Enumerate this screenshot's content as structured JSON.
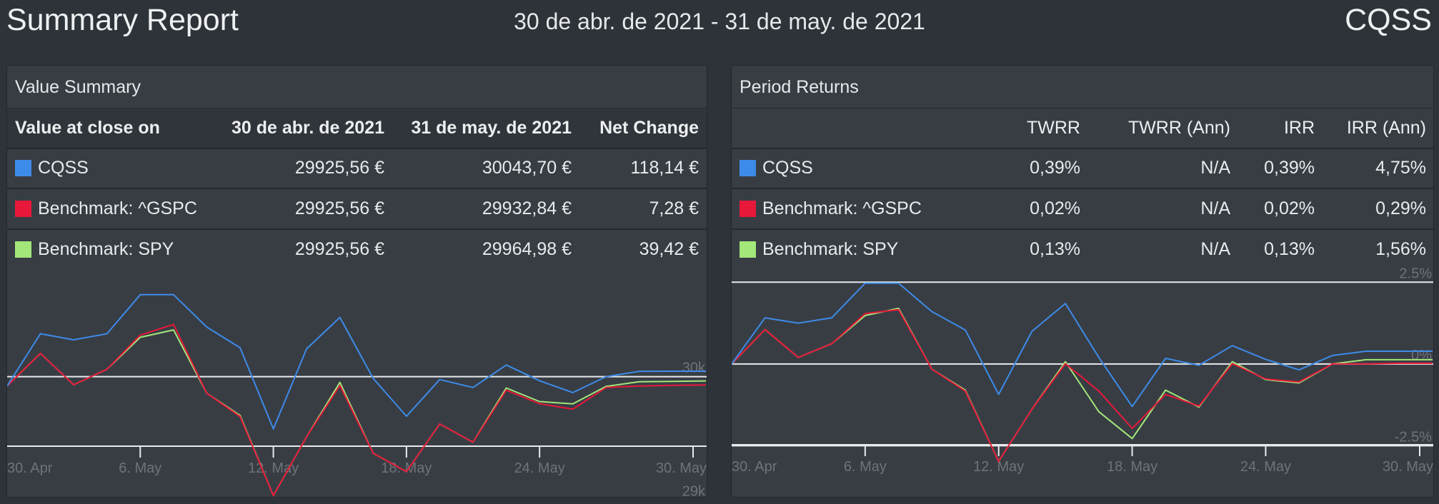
{
  "header": {
    "title": "Summary Report",
    "date_range": "30 de abr. de 2021 - 31 de may. de 2021",
    "ticker": "CQSS"
  },
  "colors": {
    "background": "#2e3339",
    "panel": "#383d44",
    "series_cqss": "#3d8be8",
    "series_gspc": "#e8183a",
    "series_spy": "#a3e67a"
  },
  "value_summary": {
    "title": "Value Summary",
    "columns": [
      "Value at close on",
      "30 de abr. de 2021",
      "31 de may. de 2021",
      "Net Change"
    ],
    "rows": [
      {
        "name": "CQSS",
        "start": "29925,56 €",
        "end": "30043,70 €",
        "change": "118,14 €"
      },
      {
        "name": "Benchmark: ^GSPC",
        "start": "29925,56 €",
        "end": "29932,84 €",
        "change": "7,28 €"
      },
      {
        "name": "Benchmark: SPY",
        "start": "29925,56 €",
        "end": "29964,98 €",
        "change": "39,42 €"
      }
    ]
  },
  "period_returns": {
    "title": "Period Returns",
    "columns": [
      "",
      "TWRR",
      "TWRR (Ann)",
      "IRR",
      "IRR (Ann)"
    ],
    "rows": [
      {
        "name": "CQSS",
        "twrr": "0,39%",
        "twrr_ann": "N/A",
        "irr": "0,39%",
        "irr_ann": "4,75%"
      },
      {
        "name": "Benchmark: ^GSPC",
        "twrr": "0,02%",
        "twrr_ann": "N/A",
        "irr": "0,02%",
        "irr_ann": "0,29%"
      },
      {
        "name": "Benchmark: SPY",
        "twrr": "0,13%",
        "twrr_ann": "N/A",
        "irr": "0,13%",
        "irr_ann": "1,56%"
      }
    ]
  },
  "chart_data": [
    {
      "type": "line",
      "x": [
        "30. Apr",
        "3. May",
        "4. May",
        "5. May",
        "6. May",
        "7. May",
        "10. May",
        "11. May",
        "12. May",
        "13. May",
        "14. May",
        "17. May",
        "18. May",
        "19. May",
        "20. May",
        "21. May",
        "24. May",
        "25. May",
        "26. May",
        "27. May",
        "28. May",
        "31. May"
      ],
      "x_ticks": [
        "30. Apr",
        "6. May",
        "12. May",
        "18. May",
        "24. May",
        "30. May"
      ],
      "y_ticks": [
        "29k",
        "30k"
      ],
      "ylim": [
        28900,
        30760
      ],
      "y_gridlines": [
        29000,
        30000
      ],
      "series": [
        {
          "name": "CQSS",
          "color": "#3d8be8",
          "values": [
            29925,
            30347,
            30298,
            30347,
            30663,
            30663,
            30401,
            30234,
            29577,
            30225,
            30479,
            29986,
            29679,
            29976,
            29912,
            30094,
            29967,
            29871,
            30000,
            30043,
            30044,
            30044
          ]
        },
        {
          "name": "Benchmark: ^GSPC",
          "color": "#e8183a",
          "values": [
            29925,
            30188,
            29934,
            30060,
            30336,
            30422,
            29865,
            29677,
            29037,
            29513,
            29928,
            29380,
            29231,
            29617,
            29469,
            29890,
            29781,
            29737,
            29912,
            29924,
            29930,
            29933
          ]
        },
        {
          "name": "Benchmark: SPY",
          "color": "#a3e67a",
          "values": [
            29925,
            30188,
            29934,
            30060,
            30318,
            30378,
            29865,
            29686,
            29037,
            29513,
            29953,
            29380,
            29231,
            29617,
            29469,
            29908,
            29798,
            29780,
            29921,
            29959,
            29961,
            29965
          ]
        }
      ]
    },
    {
      "type": "line",
      "x": [
        "30. Apr",
        "3. May",
        "4. May",
        "5. May",
        "6. May",
        "7. May",
        "10. May",
        "11. May",
        "12. May",
        "13. May",
        "14. May",
        "17. May",
        "18. May",
        "19. May",
        "20. May",
        "21. May",
        "24. May",
        "25. May",
        "26. May",
        "27. May",
        "28. May",
        "31. May"
      ],
      "x_ticks": [
        "30. Apr",
        "6. May",
        "12. May",
        "18. May",
        "24. May",
        "30. May"
      ],
      "y_ticks": [
        "2.5%",
        "0%",
        "-2.5%"
      ],
      "ylim": [
        -3.3,
        2.55
      ],
      "y_gridlines": [
        2.5,
        0,
        -2.5
      ],
      "series": [
        {
          "name": "CQSS",
          "color": "#3d8be8",
          "values": [
            0,
            1.41,
            1.25,
            1.41,
            2.47,
            2.47,
            1.6,
            1.04,
            -0.93,
            1.0,
            1.85,
            0.2,
            -1.3,
            0.17,
            -0.04,
            0.56,
            0.14,
            -0.18,
            0.26,
            0.39,
            0.39,
            0.39
          ]
        },
        {
          "name": "Benchmark: ^GSPC",
          "color": "#e8183a",
          "values": [
            0,
            1.05,
            0.2,
            0.62,
            1.54,
            1.66,
            -0.16,
            -0.83,
            -2.98,
            -1.38,
            0.01,
            -0.83,
            -1.97,
            -0.93,
            -1.29,
            0.01,
            -0.46,
            -0.55,
            0.0,
            0.0,
            0.02,
            0.02
          ]
        },
        {
          "name": "Benchmark: SPY",
          "color": "#a3e67a",
          "values": [
            0,
            1.05,
            0.2,
            0.62,
            1.48,
            1.7,
            -0.16,
            -0.8,
            -2.98,
            -1.38,
            0.07,
            -1.46,
            -2.28,
            -0.8,
            -1.32,
            0.07,
            -0.48,
            -0.58,
            0.0,
            0.13,
            0.13,
            0.13
          ]
        }
      ]
    }
  ]
}
